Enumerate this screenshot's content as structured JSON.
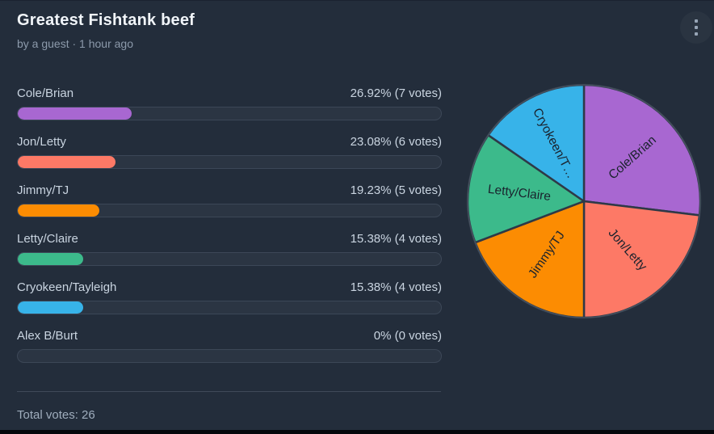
{
  "header": {
    "title": "Greatest Fishtank beef",
    "byline": "by a guest · 1 hour ago"
  },
  "menu": {
    "icon": "kebab-menu-icon"
  },
  "options": [
    {
      "label": "Cole/Brian",
      "result": "26.92% (7 votes)",
      "percent": 26.92,
      "votes": 7,
      "color": "#a867d1"
    },
    {
      "label": "Jon/Letty",
      "result": "23.08% (6 votes)",
      "percent": 23.08,
      "votes": 6,
      "color": "#fd7966"
    },
    {
      "label": "Jimmy/TJ",
      "result": "19.23% (5 votes)",
      "percent": 19.23,
      "votes": 5,
      "color": "#fc8c02"
    },
    {
      "label": "Letty/Claire",
      "result": "15.38% (4 votes)",
      "percent": 15.38,
      "votes": 4,
      "color": "#3cba8b"
    },
    {
      "label": "Cryokeen/Tayleigh",
      "result": "15.38% (4 votes)",
      "percent": 15.38,
      "votes": 4,
      "color": "#37b3e9"
    },
    {
      "label": "Alex B/Burt",
      "result": "0% (0 votes)",
      "percent": 0,
      "votes": 0,
      "color": "#2b3543"
    }
  ],
  "footer": {
    "total_votes": "Total votes: 26"
  },
  "chart_data": {
    "type": "pie",
    "categories": [
      "Cole/Brian",
      "Jon/Letty",
      "Jimmy/TJ",
      "Letty/Claire",
      "Cryokeen/Tayleigh"
    ],
    "slice_labels": [
      "Cole/Brian",
      "Jon/Letty",
      "Jimmy/TJ",
      "Letty/Claire",
      "Cryokeen/T…"
    ],
    "values": [
      7,
      6,
      5,
      4,
      4
    ],
    "percents": [
      26.92,
      23.08,
      19.23,
      15.38,
      15.38
    ],
    "colors": [
      "#a867d1",
      "#fd7966",
      "#fc8c02",
      "#3cba8b",
      "#37b3e9"
    ],
    "start_angle": "top",
    "direction": "clockwise",
    "legend": "none",
    "label_placement": "radial-inside",
    "stroke_color": "#2e3947",
    "outer_ring_color": "#46515f",
    "label_color": "#1a222d"
  }
}
